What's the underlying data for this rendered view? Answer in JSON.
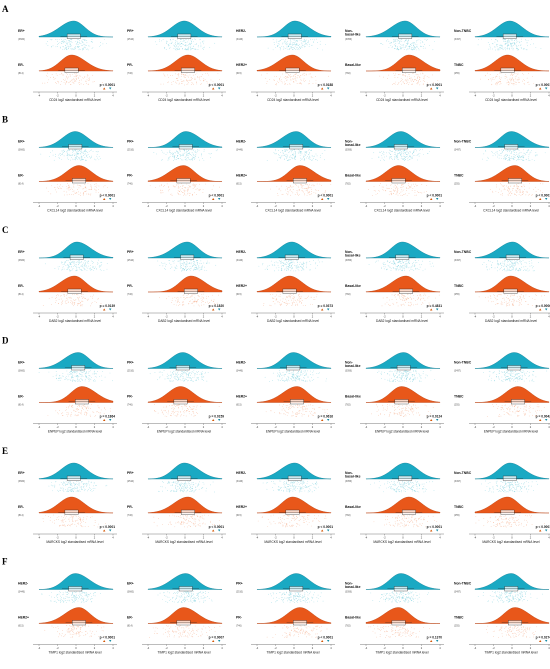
{
  "colors": {
    "top_fill": "#1aa9c3",
    "top_stroke": "#0f7f95",
    "top_dot": "#8fd6e2",
    "bottom_fill": "#e8571a",
    "bottom_stroke": "#b84010",
    "bottom_dot": "#f6b596",
    "axis": "#555555",
    "pval_up": "#d35400",
    "pval_down": "#138aa3"
  },
  "chart_data": [
    {
      "type": "raincloud",
      "panel_letter": "A",
      "gene": "CD24",
      "xlabel": "CD24 log2 standardised mRNA level",
      "x_ticks": [
        "-4",
        "-2",
        "0",
        "2",
        "4"
      ],
      "panels": [
        {
          "top_label": "ER+",
          "bottom_label": "ER-",
          "top_count": "(3660)",
          "bottom_count": "(814)",
          "p_value": "p < 0.0001"
        },
        {
          "top_label": "PR+",
          "bottom_label": "PR-",
          "top_count": "(2510)",
          "bottom_count": "(746)",
          "p_value": "p < 0.0001"
        },
        {
          "top_label": "HER2-",
          "bottom_label": "HER2+",
          "top_count": "(3446)",
          "bottom_count": "(615)",
          "p_value": "p < 0.0188"
        },
        {
          "top_label": "Non-\nbasal-like",
          "bottom_label": "Basal-like",
          "top_count": "(3056)",
          "bottom_count": "(782)",
          "p_value": "p < 0.0001"
        },
        {
          "top_label": "Non-TNBC",
          "bottom_label": "TNBC",
          "top_count": "(3497)",
          "bottom_count": "(255)",
          "p_value": "p < 0.0001"
        }
      ]
    },
    {
      "type": "raincloud",
      "panel_letter": "B",
      "gene": "CXCL14",
      "xlabel": "CXCL14 log2 standardised mRNA level",
      "x_ticks": [
        "-4",
        "-2",
        "0",
        "2",
        "4"
      ],
      "panels": [
        {
          "top_label": "ER+",
          "bottom_label": "ER-",
          "top_count": "(3660)",
          "bottom_count": "(814)",
          "p_value": "p < 0.0001"
        },
        {
          "top_label": "PR+",
          "bottom_label": "PR-",
          "top_count": "(2510)",
          "bottom_count": "(746)",
          "p_value": "p < 0.0001"
        },
        {
          "top_label": "HER2-",
          "bottom_label": "HER2+",
          "top_count": "(3446)",
          "bottom_count": "(615)",
          "p_value": "p < 0.0001"
        },
        {
          "top_label": "Non-\nbasal-like",
          "bottom_label": "Basal-like",
          "top_count": "(3056)",
          "bottom_count": "(782)",
          "p_value": "p < 0.0001"
        },
        {
          "top_label": "Non-TNBC",
          "bottom_label": "TNBC",
          "top_count": "(3497)",
          "bottom_count": "(255)",
          "p_value": "p < 0.0001"
        }
      ]
    },
    {
      "type": "raincloud",
      "panel_letter": "C",
      "gene": "DAB2",
      "xlabel": "DAB2 log2 standardised mRNA level",
      "x_ticks": [
        "-4",
        "-2",
        "0",
        "2",
        "4"
      ],
      "panels": [
        {
          "top_label": "ER+",
          "bottom_label": "ER-",
          "top_count": "(3660)",
          "bottom_count": "(814)",
          "p_value": "p = 0.0139"
        },
        {
          "top_label": "PR+",
          "bottom_label": "PR-",
          "top_count": "(2510)",
          "bottom_count": "(746)",
          "p_value": "p = 0.1820"
        },
        {
          "top_label": "HER2-",
          "bottom_label": "HER2+",
          "top_count": "(3446)",
          "bottom_count": "(615)",
          "p_value": "p = 0.0373"
        },
        {
          "top_label": "Non-\nbasal-like",
          "bottom_label": "Basal-like",
          "top_count": "(3056)",
          "bottom_count": "(782)",
          "p_value": "p = 0.4831"
        },
        {
          "top_label": "Non-TNBC",
          "bottom_label": "TNBC",
          "top_count": "(3497)",
          "bottom_count": "(255)",
          "p_value": "p = 0.0006"
        }
      ]
    },
    {
      "type": "raincloud",
      "panel_letter": "D",
      "gene": "ENPEP",
      "xlabel": "ENPEP log2 standardised mRNA level",
      "x_ticks": [
        "-4",
        "-2",
        "0",
        "2",
        "4"
      ],
      "panels": [
        {
          "top_label": "ER+",
          "bottom_label": "ER-",
          "top_count": "(3660)",
          "bottom_count": "(814)",
          "p_value": "p = 0.1864"
        },
        {
          "top_label": "PR+",
          "bottom_label": "PR-",
          "top_count": "(2510)",
          "bottom_count": "(746)",
          "p_value": "p = 0.0159"
        },
        {
          "top_label": "HER2-",
          "bottom_label": "HER2+",
          "top_count": "(3446)",
          "bottom_count": "(615)",
          "p_value": "p = 0.0616"
        },
        {
          "top_label": "Non-\nbasal-like",
          "bottom_label": "Basal-like",
          "top_count": "(3056)",
          "bottom_count": "(782)",
          "p_value": "p = 0.0124"
        },
        {
          "top_label": "Non-TNBC",
          "bottom_label": "TNBC",
          "top_count": "(3497)",
          "bottom_count": "(255)",
          "p_value": "p = 0.0042"
        }
      ]
    },
    {
      "type": "raincloud",
      "panel_letter": "E",
      "gene": "MARCKS",
      "xlabel": "MARCKS log2 standardised mRNA level",
      "x_ticks": [
        "-4",
        "-2",
        "0",
        "2",
        "4"
      ],
      "panels": [
        {
          "top_label": "ER+",
          "bottom_label": "ER-",
          "top_count": "(3660)",
          "bottom_count": "(814)",
          "p_value": "p < 0.0001"
        },
        {
          "top_label": "PR+",
          "bottom_label": "PR-",
          "top_count": "(2510)",
          "bottom_count": "(746)",
          "p_value": "p < 0.0001"
        },
        {
          "top_label": "HER2-",
          "bottom_label": "HER2+",
          "top_count": "(3446)",
          "bottom_count": "(615)",
          "p_value": "p < 0.0001"
        },
        {
          "top_label": "Non-\nbasal-like",
          "bottom_label": "Basal-like",
          "top_count": "(3056)",
          "bottom_count": "(782)",
          "p_value": "p < 0.0001"
        },
        {
          "top_label": "Non-TNBC",
          "bottom_label": "TNBC",
          "top_count": "(3497)",
          "bottom_count": "(255)",
          "p_value": "p < 0.0001"
        }
      ]
    },
    {
      "type": "raincloud",
      "panel_letter": "F",
      "gene": "TIMP1",
      "xlabel": "TIMP1 log2 standardised mRNA level",
      "x_ticks": [
        "-4",
        "-2",
        "0",
        "2",
        "4"
      ],
      "panels": [
        {
          "top_label": "HER2-",
          "bottom_label": "HER2+",
          "top_count": "(3446)",
          "bottom_count": "(615)",
          "p_value": "p < 0.0001"
        },
        {
          "top_label": "ER+",
          "bottom_label": "ER-",
          "top_count": "(3660)",
          "bottom_count": "(814)",
          "p_value": "p = 0.0007"
        },
        {
          "top_label": "PR+",
          "bottom_label": "PR-",
          "top_count": "(2510)",
          "bottom_count": "(746)",
          "p_value": "p < 0.0001"
        },
        {
          "top_label": "Non-\nbasal-like",
          "bottom_label": "Basal-like",
          "top_count": "(3056)",
          "bottom_count": "(782)",
          "p_value": "p = 0.1370"
        },
        {
          "top_label": "Non-TNBC",
          "bottom_label": "TNBC",
          "top_count": "(3497)",
          "bottom_count": "(255)",
          "p_value": "p = 0.0274"
        }
      ]
    }
  ]
}
